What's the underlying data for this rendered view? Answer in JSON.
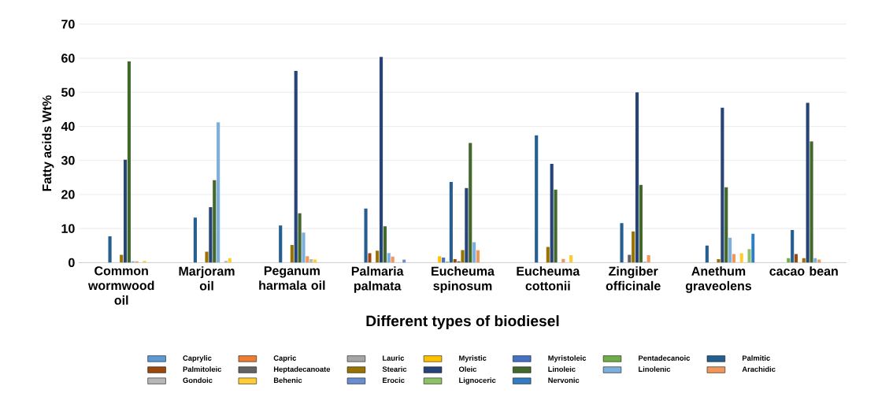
{
  "chart_data": {
    "type": "bar",
    "xlabel": "Different types of biodiesel",
    "ylabel": "Fatty acids Wt%",
    "categories": [
      "Common wormwood oil",
      "Marjoram oil",
      "Peganum harmala oil",
      "Palmaria palmata",
      "Eucheuma spinosum",
      "Eucheuma cottonii",
      "Zingiber officinale",
      "Anethum graveolens",
      "cacao bean"
    ],
    "ylim": [
      0,
      70
    ],
    "yticks": [
      0,
      10,
      20,
      30,
      40,
      50,
      60,
      70
    ],
    "grid": "y",
    "legend": "bottom",
    "series": [
      {
        "name": "Caprylic",
        "color": "#5b9bd5",
        "values": [
          null,
          null,
          null,
          null,
          null,
          null,
          null,
          null,
          null
        ]
      },
      {
        "name": "Capric",
        "color": "#ed7d31",
        "values": [
          null,
          null,
          null,
          null,
          null,
          null,
          null,
          null,
          null
        ]
      },
      {
        "name": "Lauric",
        "color": "#a5a5a5",
        "values": [
          null,
          null,
          null,
          null,
          null,
          null,
          null,
          null,
          null
        ]
      },
      {
        "name": "Myristic",
        "color": "#ffc000",
        "values": [
          null,
          null,
          null,
          null,
          1.9,
          null,
          null,
          null,
          null
        ]
      },
      {
        "name": "Myristoleic",
        "color": "#4472c4",
        "values": [
          null,
          null,
          null,
          null,
          1.5,
          null,
          null,
          null,
          null
        ]
      },
      {
        "name": "Pentadecanoic",
        "color": "#70ad47",
        "values": [
          null,
          null,
          null,
          null,
          0.3,
          null,
          null,
          null,
          1.3
        ]
      },
      {
        "name": "Palmitic",
        "color": "#255e91",
        "values": [
          7.7,
          13.2,
          10.9,
          15.9,
          23.7,
          37.4,
          11.6,
          5.0,
          9.6
        ]
      },
      {
        "name": "Palmitoleic",
        "color": "#9e480e",
        "values": [
          null,
          null,
          null,
          2.8,
          1.0,
          null,
          null,
          null,
          2.5
        ]
      },
      {
        "name": "Heptadecanoate",
        "color": "#636363",
        "values": [
          null,
          null,
          null,
          null,
          0.4,
          null,
          2.3,
          null,
          null
        ]
      },
      {
        "name": "Stearic",
        "color": "#997300",
        "values": [
          2.3,
          3.2,
          5.2,
          3.5,
          3.7,
          4.6,
          9.2,
          1.0,
          1.3
        ]
      },
      {
        "name": "Oleic",
        "color": "#264478",
        "values": [
          30.2,
          16.3,
          56.3,
          60.4,
          21.9,
          29.0,
          50.0,
          45.5,
          46.9
        ]
      },
      {
        "name": "Linoleic",
        "color": "#43682b",
        "values": [
          59.1,
          24.2,
          14.5,
          10.7,
          35.1,
          21.4,
          22.8,
          22.1,
          35.6
        ]
      },
      {
        "name": "Linolenic",
        "color": "#7cafdd",
        "values": [
          0.4,
          41.2,
          8.8,
          2.8,
          6.0,
          null,
          0.3,
          7.3,
          1.3
        ]
      },
      {
        "name": "Arachidic",
        "color": "#f1975a",
        "values": [
          0.4,
          null,
          1.9,
          1.8,
          3.7,
          1.1,
          2.2,
          2.5,
          0.9
        ]
      },
      {
        "name": "Gondoic",
        "color": "#b7b7b7",
        "values": [
          null,
          0.5,
          1.0,
          null,
          null,
          null,
          null,
          null,
          null
        ]
      },
      {
        "name": "Behenic",
        "color": "#ffcd33",
        "values": [
          0.5,
          1.3,
          0.9,
          null,
          null,
          2.2,
          null,
          2.8,
          null
        ]
      },
      {
        "name": "Erocic",
        "color": "#698ed0",
        "values": [
          null,
          null,
          null,
          0.9,
          null,
          null,
          null,
          null,
          null
        ]
      },
      {
        "name": "Lignoceric",
        "color": "#8cc168",
        "values": [
          null,
          null,
          null,
          null,
          null,
          null,
          null,
          4.0,
          null
        ]
      },
      {
        "name": "Nervonic",
        "color": "#327dc2",
        "values": [
          null,
          null,
          null,
          null,
          null,
          null,
          null,
          8.5,
          null
        ]
      }
    ]
  }
}
